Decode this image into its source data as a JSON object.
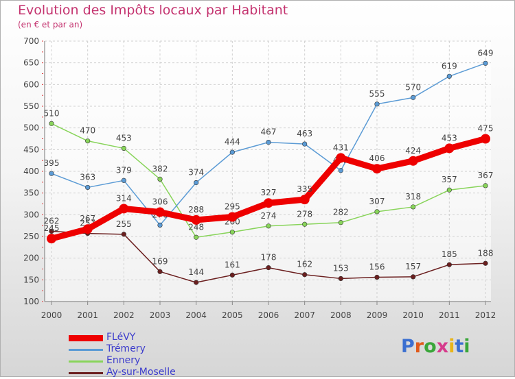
{
  "title": "Evolution des Impôts locaux par Habitant",
  "subtitle": "(en € et par an)",
  "logo_text": "Proxiti",
  "logo_colors": [
    "#3b6fd0",
    "#e05a1a",
    "#3aa63a",
    "#d63b8c",
    "#e8b51a",
    "#3b6fd0",
    "#3aa63a"
  ],
  "chart_data": {
    "type": "line",
    "x": [
      "2000",
      "2001",
      "2002",
      "2003",
      "2004",
      "2005",
      "2006",
      "2007",
      "2008",
      "2009",
      "2010",
      "2011",
      "2012"
    ],
    "ylim": [
      100,
      700
    ],
    "yticks": [
      "100",
      "150",
      "200",
      "250",
      "300",
      "350",
      "400",
      "450",
      "500",
      "550",
      "600",
      "650",
      "700"
    ],
    "grid": true,
    "legend_position": "bottom-left",
    "series": [
      {
        "name": "Ay-sur-Moselle",
        "color": "#6b1f1f",
        "values": [
          262,
          257,
          255,
          169,
          144,
          161,
          178,
          162,
          153,
          156,
          157,
          185,
          188
        ],
        "labels": [
          "262",
          "257",
          "255",
          "169",
          "144",
          "161",
          "178",
          "162",
          "153",
          "156",
          "157",
          "185",
          "188"
        ]
      },
      {
        "name": "Ennery",
        "color": "#88d45a",
        "values": [
          510,
          470,
          453,
          382,
          248,
          260,
          274,
          278,
          282,
          307,
          318,
          357,
          367
        ],
        "labels": [
          "510",
          "470",
          "453",
          "382",
          "248",
          "260",
          "274",
          "278",
          "282",
          "307",
          "318",
          "357",
          "367"
        ]
      },
      {
        "name": "Trémery",
        "color": "#5b9bd5",
        "values": [
          395,
          363,
          379,
          276,
          374,
          444,
          467,
          463,
          402,
          555,
          570,
          619,
          649
        ],
        "labels": [
          "395",
          "363",
          "379",
          "276",
          "374",
          "444",
          "467",
          "463",
          "402",
          "555",
          "570",
          "619",
          "649"
        ]
      },
      {
        "name": "FLéVY",
        "color": "#ee0000",
        "values": [
          245,
          267,
          314,
          306,
          288,
          295,
          327,
          335,
          431,
          406,
          424,
          453,
          475
        ],
        "labels": [
          "245",
          "267",
          "314",
          "306",
          "288",
          "295",
          "327",
          "335",
          "431",
          "406",
          "424",
          "453",
          "475"
        ]
      }
    ]
  },
  "legend": [
    {
      "name": "FLéVY",
      "color": "#ee0000",
      "thickness": 9
    },
    {
      "name": "Trémery",
      "color": "#5b9bd5",
      "thickness": 3
    },
    {
      "name": "Ennery",
      "color": "#88d45a",
      "thickness": 3
    },
    {
      "name": "Ay-sur-Moselle",
      "color": "#6b1f1f",
      "thickness": 3
    }
  ]
}
